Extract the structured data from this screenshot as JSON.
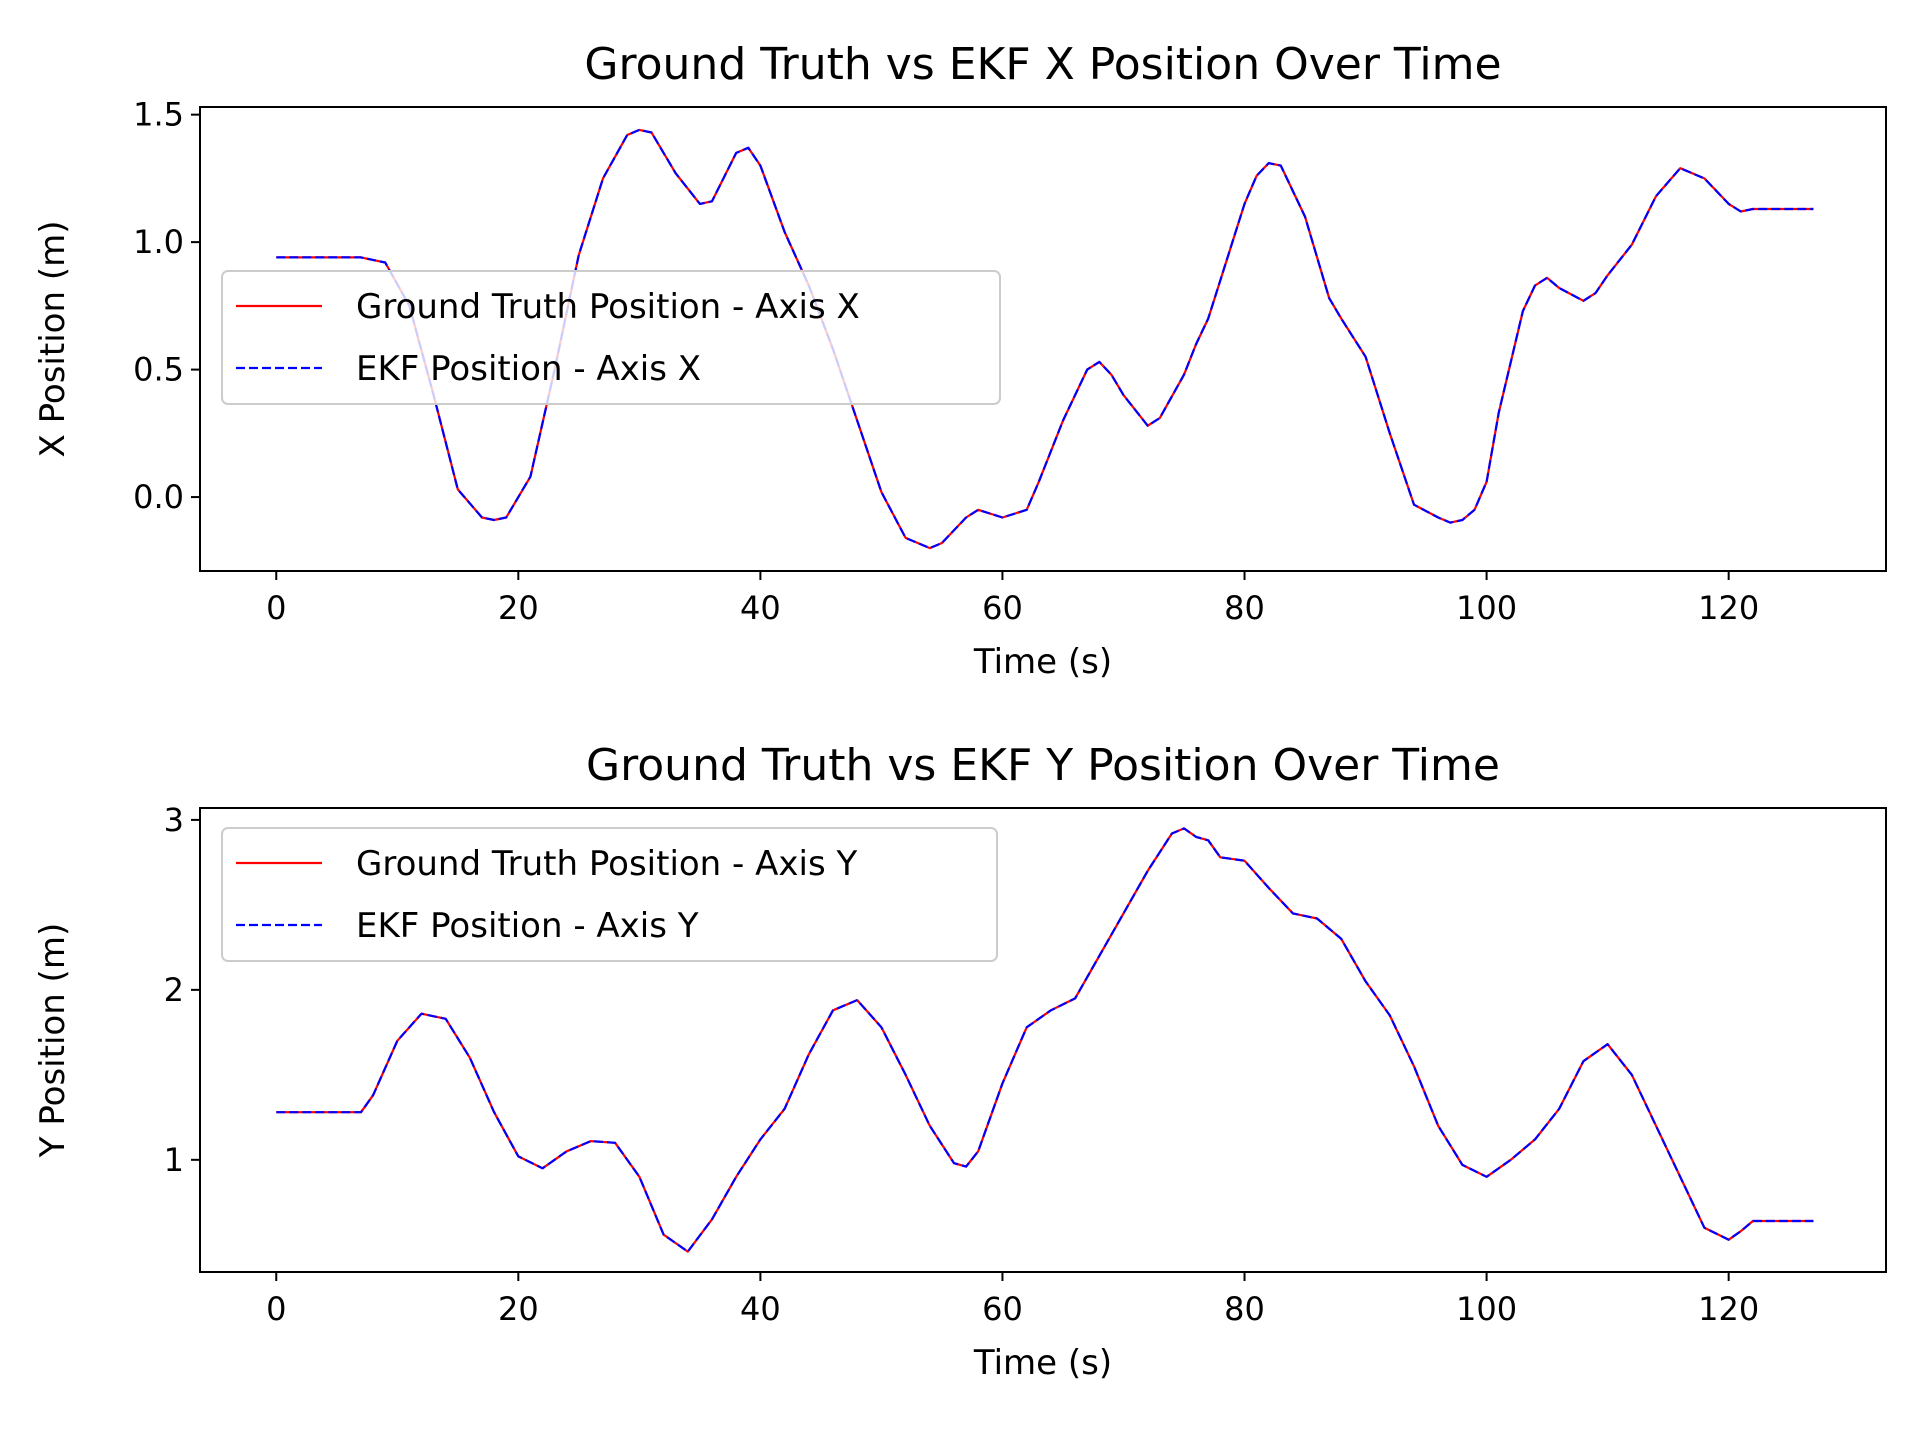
{
  "chart_data": [
    {
      "type": "line",
      "title": "Ground Truth vs EKF X Position Over Time",
      "xlabel": "Time (s)",
      "ylabel": "X Position (m)",
      "xlim": [
        -6.3,
        133.0
      ],
      "ylim": [
        -0.29,
        1.53
      ],
      "xticks": [
        0,
        20,
        40,
        60,
        80,
        100,
        120
      ],
      "yticks": [
        0.0,
        0.5,
        1.0,
        1.5
      ],
      "xtick_labels": [
        "0",
        "20",
        "40",
        "60",
        "80",
        "100",
        "120"
      ],
      "ytick_labels": [
        "0.0",
        "0.5",
        "1.0",
        "1.5"
      ],
      "grid": false,
      "legend_position": "center-left",
      "series": [
        {
          "name": "Ground Truth Position - Axis X",
          "color": "#ff0000",
          "style": "solid",
          "x": [
            0,
            7,
            9,
            11,
            13,
            15,
            17,
            18,
            19,
            21,
            23,
            25,
            27,
            29,
            30,
            31,
            33,
            35,
            36,
            38,
            39,
            40,
            42,
            44,
            46,
            48,
            50,
            52,
            54,
            55,
            57,
            58,
            60,
            62,
            63,
            65,
            67,
            68,
            69,
            70,
            72,
            73,
            75,
            76,
            77,
            78,
            80,
            81,
            82,
            83,
            85,
            87,
            88,
            90,
            92,
            94,
            96,
            97,
            98,
            99,
            100,
            101,
            103,
            104,
            105,
            106,
            108,
            109,
            110,
            112,
            114,
            116,
            118,
            120,
            121,
            122,
            124,
            127
          ],
          "y": [
            0.94,
            0.94,
            0.92,
            0.75,
            0.4,
            0.03,
            -0.08,
            -0.09,
            -0.08,
            0.08,
            0.5,
            0.95,
            1.25,
            1.42,
            1.44,
            1.43,
            1.27,
            1.15,
            1.16,
            1.35,
            1.37,
            1.3,
            1.04,
            0.83,
            0.58,
            0.3,
            0.02,
            -0.16,
            -0.2,
            -0.18,
            -0.08,
            -0.05,
            -0.08,
            -0.05,
            0.06,
            0.3,
            0.5,
            0.53,
            0.48,
            0.4,
            0.28,
            0.31,
            0.48,
            0.6,
            0.7,
            0.85,
            1.15,
            1.26,
            1.31,
            1.3,
            1.1,
            0.78,
            0.7,
            0.55,
            0.25,
            -0.03,
            -0.08,
            -0.1,
            -0.09,
            -0.05,
            0.06,
            0.33,
            0.73,
            0.83,
            0.86,
            0.82,
            0.77,
            0.8,
            0.87,
            0.99,
            1.18,
            1.29,
            1.25,
            1.15,
            1.12,
            1.13,
            1.13,
            1.13
          ]
        },
        {
          "name": "EKF Position - Axis X",
          "color": "#0000ff",
          "style": "dashed",
          "x": [
            0,
            7,
            9,
            11,
            13,
            15,
            17,
            18,
            19,
            21,
            23,
            25,
            27,
            29,
            30,
            31,
            33,
            35,
            36,
            38,
            39,
            40,
            42,
            44,
            46,
            48,
            50,
            52,
            54,
            55,
            57,
            58,
            60,
            62,
            63,
            65,
            67,
            68,
            69,
            70,
            72,
            73,
            75,
            76,
            77,
            78,
            80,
            81,
            82,
            83,
            85,
            87,
            88,
            90,
            92,
            94,
            96,
            97,
            98,
            99,
            100,
            101,
            103,
            104,
            105,
            106,
            108,
            109,
            110,
            112,
            114,
            116,
            118,
            120,
            121,
            122,
            124,
            127
          ],
          "y": [
            0.94,
            0.94,
            0.92,
            0.75,
            0.4,
            0.03,
            -0.08,
            -0.09,
            -0.08,
            0.08,
            0.5,
            0.95,
            1.25,
            1.42,
            1.44,
            1.43,
            1.27,
            1.15,
            1.16,
            1.35,
            1.37,
            1.3,
            1.04,
            0.83,
            0.58,
            0.3,
            0.02,
            -0.16,
            -0.2,
            -0.18,
            -0.08,
            -0.05,
            -0.08,
            -0.05,
            0.06,
            0.3,
            0.5,
            0.53,
            0.48,
            0.4,
            0.28,
            0.31,
            0.48,
            0.6,
            0.7,
            0.85,
            1.15,
            1.26,
            1.31,
            1.3,
            1.1,
            0.78,
            0.7,
            0.55,
            0.25,
            -0.03,
            -0.08,
            -0.1,
            -0.09,
            -0.05,
            0.06,
            0.33,
            0.73,
            0.83,
            0.86,
            0.82,
            0.77,
            0.8,
            0.87,
            0.99,
            1.18,
            1.29,
            1.25,
            1.15,
            1.12,
            1.13,
            1.13,
            1.13
          ]
        }
      ]
    },
    {
      "type": "line",
      "title": "Ground Truth vs EKF Y Position Over Time",
      "xlabel": "Time (s)",
      "ylabel": "Y Position (m)",
      "xlim": [
        -6.3,
        133.0
      ],
      "ylim": [
        0.34,
        3.07
      ],
      "xticks": [
        0,
        20,
        40,
        60,
        80,
        100,
        120
      ],
      "yticks": [
        1,
        2,
        3
      ],
      "xtick_labels": [
        "0",
        "20",
        "40",
        "60",
        "80",
        "100",
        "120"
      ],
      "ytick_labels": [
        "1",
        "2",
        "3"
      ],
      "grid": false,
      "legend_position": "top-left",
      "series": [
        {
          "name": "Ground Truth Position - Axis Y",
          "color": "#ff0000",
          "style": "solid",
          "x": [
            0,
            7,
            8,
            10,
            12,
            14,
            16,
            18,
            20,
            22,
            24,
            26,
            28,
            30,
            32,
            34,
            36,
            38,
            40,
            42,
            44,
            46,
            48,
            50,
            52,
            54,
            56,
            57,
            58,
            60,
            62,
            64,
            66,
            68,
            70,
            72,
            74,
            75,
            76,
            77,
            78,
            80,
            82,
            84,
            86,
            88,
            90,
            92,
            94,
            96,
            98,
            100,
            102,
            104,
            106,
            108,
            110,
            112,
            114,
            116,
            118,
            120,
            121,
            122,
            124,
            127
          ],
          "y": [
            1.28,
            1.28,
            1.38,
            1.7,
            1.86,
            1.83,
            1.6,
            1.28,
            1.02,
            0.95,
            1.05,
            1.11,
            1.1,
            0.9,
            0.56,
            0.46,
            0.65,
            0.9,
            1.12,
            1.3,
            1.62,
            1.88,
            1.94,
            1.78,
            1.5,
            1.2,
            0.98,
            0.96,
            1.05,
            1.45,
            1.78,
            1.88,
            1.95,
            2.2,
            2.45,
            2.7,
            2.92,
            2.95,
            2.9,
            2.88,
            2.78,
            2.76,
            2.6,
            2.45,
            2.42,
            2.3,
            2.05,
            1.85,
            1.55,
            1.2,
            0.97,
            0.9,
            1.0,
            1.12,
            1.3,
            1.58,
            1.68,
            1.5,
            1.2,
            0.9,
            0.6,
            0.53,
            0.58,
            0.64,
            0.64,
            0.64
          ]
        },
        {
          "name": "EKF Position - Axis Y",
          "color": "#0000ff",
          "style": "dashed",
          "x": [
            0,
            7,
            8,
            10,
            12,
            14,
            16,
            18,
            20,
            22,
            24,
            26,
            28,
            30,
            32,
            34,
            36,
            38,
            40,
            42,
            44,
            46,
            48,
            50,
            52,
            54,
            56,
            57,
            58,
            60,
            62,
            64,
            66,
            68,
            70,
            72,
            74,
            75,
            76,
            77,
            78,
            80,
            82,
            84,
            86,
            88,
            90,
            92,
            94,
            96,
            98,
            100,
            102,
            104,
            106,
            108,
            110,
            112,
            114,
            116,
            118,
            120,
            121,
            122,
            124,
            127
          ],
          "y": [
            1.28,
            1.28,
            1.38,
            1.7,
            1.86,
            1.83,
            1.6,
            1.28,
            1.02,
            0.95,
            1.05,
            1.11,
            1.1,
            0.9,
            0.56,
            0.46,
            0.65,
            0.9,
            1.12,
            1.3,
            1.62,
            1.88,
            1.94,
            1.78,
            1.5,
            1.2,
            0.98,
            0.96,
            1.05,
            1.45,
            1.78,
            1.88,
            1.95,
            2.2,
            2.45,
            2.7,
            2.92,
            2.95,
            2.9,
            2.88,
            2.78,
            2.76,
            2.6,
            2.45,
            2.42,
            2.3,
            2.05,
            1.85,
            1.55,
            1.2,
            0.97,
            0.9,
            1.0,
            1.12,
            1.3,
            1.58,
            1.68,
            1.5,
            1.2,
            0.9,
            0.6,
            0.53,
            0.58,
            0.64,
            0.64,
            0.64
          ]
        }
      ]
    }
  ]
}
